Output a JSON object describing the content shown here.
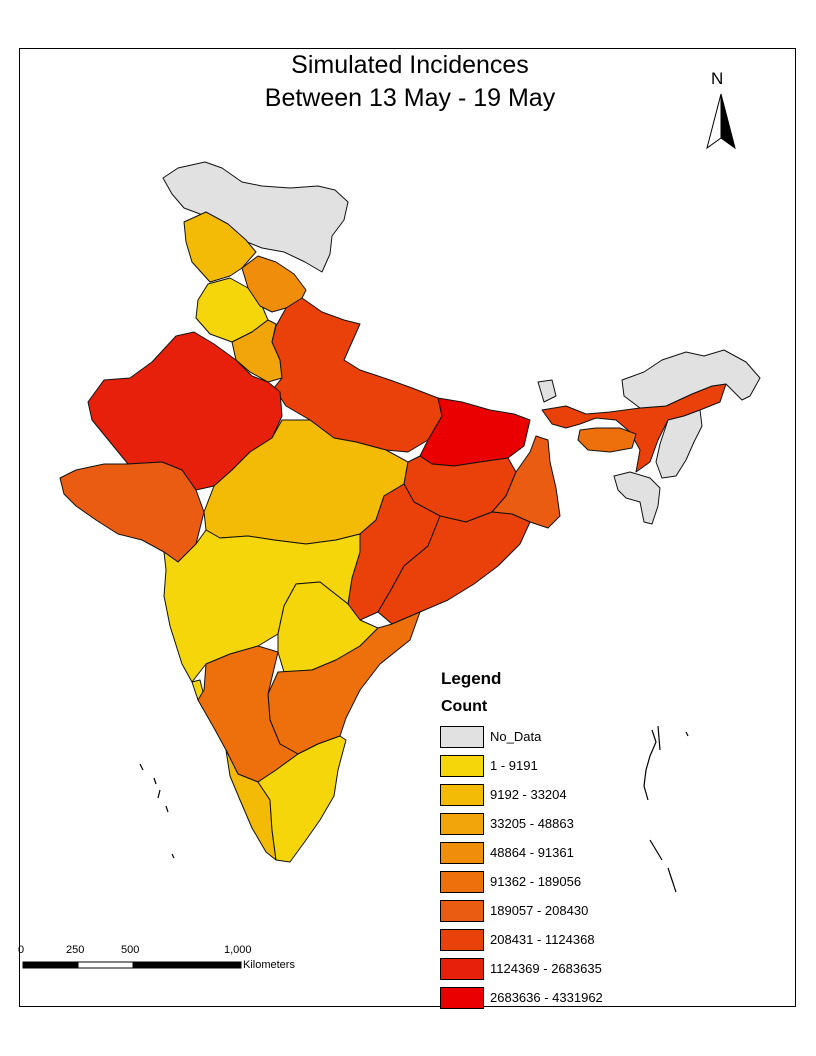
{
  "title": {
    "line1": "Simulated Incidences",
    "line2": "Between 13 May - 19 May"
  },
  "north_arrow": {
    "label": "N",
    "icon": "north-arrow-icon"
  },
  "legend": {
    "heading": "Legend",
    "field": "Count",
    "classes": [
      {
        "label": "No_Data",
        "color": "#e1e1e1"
      },
      {
        "label": "1 - 9191",
        "color": "#f5d60a"
      },
      {
        "label": "9192 - 33204",
        "color": "#f3bb05"
      },
      {
        "label": "33205 - 48863",
        "color": "#f2a50b"
      },
      {
        "label": "48864 - 91361",
        "color": "#f08d0a"
      },
      {
        "label": "91362 - 189056",
        "color": "#ee700c"
      },
      {
        "label": "189057 - 208430",
        "color": "#eb5c13"
      },
      {
        "label": "208431 - 1124368",
        "color": "#ea400a"
      },
      {
        "label": "1124369 - 2683635",
        "color": "#e7200b"
      },
      {
        "label": "2683636 - 4331962",
        "color": "#ea0000"
      }
    ]
  },
  "scale_bar": {
    "ticks": [
      "0",
      "250",
      "500",
      "1,000"
    ],
    "unit": "Kilometers"
  }
}
